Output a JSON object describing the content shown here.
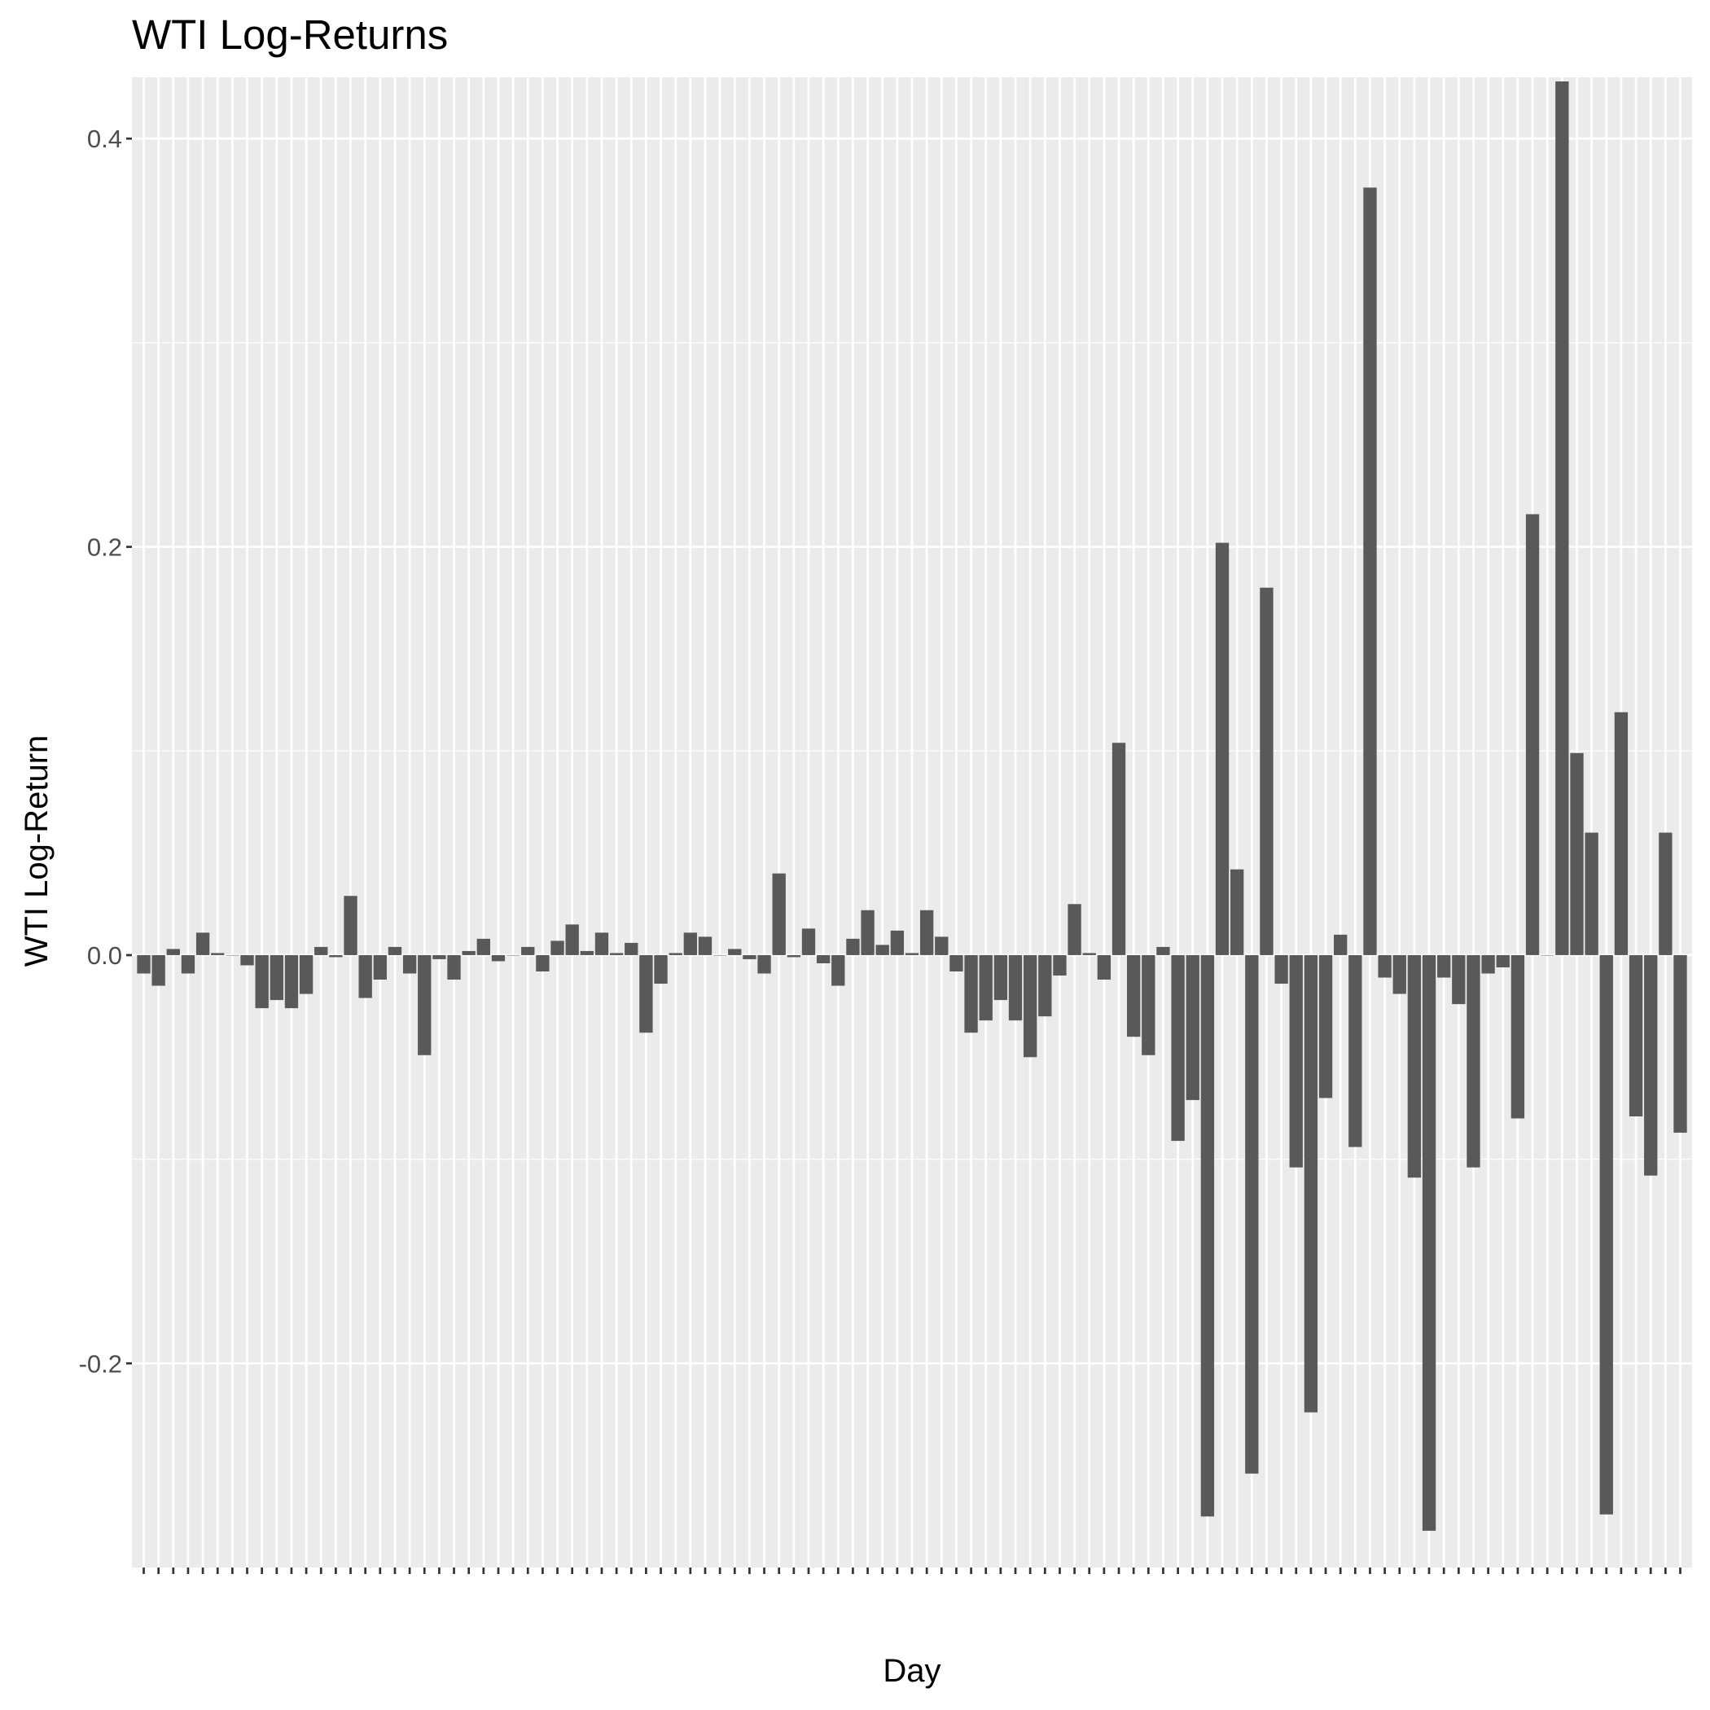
{
  "colors": {
    "panel_background": "#ebebeb",
    "grid_major": "#ffffff",
    "bar_fill": "#595959",
    "tick_label": "#4d4d4d",
    "tick_mark": "#333333",
    "title": "#000000"
  },
  "chart_data": {
    "type": "bar",
    "title": "WTI Log-Returns",
    "xlabel": "Day",
    "ylabel": "WTI Log-Return",
    "ylim": [
      -0.3,
      0.43
    ],
    "yticks": [
      -0.2,
      0.0,
      0.2,
      0.4
    ],
    "ytick_labels": [
      "-0.2",
      "0.0",
      "0.2",
      "0.4"
    ],
    "grid": true,
    "legend": "none",
    "xtick_labels_note": "x tick labels are overplotted and illegible in the original",
    "series": [
      {
        "values": [
          -0.009,
          -0.015,
          0.003,
          -0.009,
          0.011,
          0.001,
          0.0,
          -0.005,
          -0.026,
          -0.022,
          -0.026,
          -0.019,
          0.004,
          -0.001,
          0.029,
          -0.021,
          -0.012,
          0.004,
          -0.009,
          -0.049,
          -0.002,
          -0.012,
          0.002,
          0.008,
          -0.003,
          0.0,
          0.004,
          -0.008,
          0.007,
          0.015,
          0.002,
          0.011,
          0.001,
          0.006,
          -0.038,
          -0.014,
          0.001,
          0.011,
          0.009,
          0.0,
          0.003,
          -0.002,
          -0.009,
          0.04,
          -0.001,
          0.013,
          -0.004,
          -0.015,
          0.008,
          0.022,
          0.005,
          0.012,
          0.001,
          0.022,
          0.009,
          -0.008,
          -0.038,
          -0.032,
          -0.022,
          -0.032,
          -0.05,
          -0.03,
          -0.01,
          0.025,
          0.001,
          -0.012,
          0.104,
          -0.04,
          -0.049,
          0.004,
          -0.091,
          -0.071,
          -0.275,
          0.202,
          0.042,
          -0.254,
          0.18,
          -0.014,
          -0.104,
          -0.224,
          -0.07,
          0.01,
          -0.094,
          0.376,
          -0.011,
          -0.019,
          -0.109,
          -0.282,
          -0.011,
          -0.024,
          -0.104,
          -0.009,
          -0.006,
          -0.08,
          0.216,
          0.0,
          0.428,
          0.099,
          0.06,
          -0.274,
          0.119,
          -0.079,
          -0.108,
          0.06,
          -0.087
        ]
      }
    ]
  }
}
